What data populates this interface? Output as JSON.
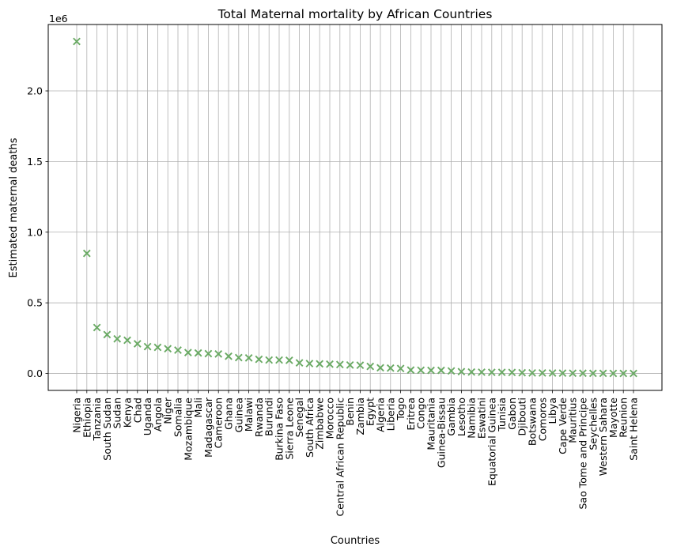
{
  "chart_data": {
    "type": "scatter",
    "title": "Total Maternal mortality by African Countries",
    "xlabel": "Countries",
    "ylabel": "Estimated maternal deaths",
    "offset_text": "1e6",
    "marker": "x",
    "marker_color": "#6aaa64",
    "grid": true,
    "ylim": [
      -120000,
      2470000
    ],
    "yticks": [
      0,
      500000,
      1000000,
      1500000,
      2000000
    ],
    "ytick_labels": [
      "0.0",
      "0.5",
      "1.0",
      "1.5",
      "2.0"
    ],
    "categories": [
      "Nigeria",
      "Ethiopia",
      "Tanzania",
      "South Sudan",
      "Sudan",
      "Kenya",
      "Chad",
      "Uganda",
      "Angola",
      "Niger",
      "Somalia",
      "Mozambique",
      "Mali",
      "Madagascar",
      "Cameroon",
      "Ghana",
      "Guinea",
      "Malawi",
      "Rwanda",
      "Burundi",
      "Burkina Faso",
      "Sierra Leone",
      "Senegal",
      "South Africa",
      "Zimbabwe",
      "Morocco",
      "Central African Republic",
      "Benin",
      "Zambia",
      "Egypt",
      "Algeria",
      "Liberia",
      "Togo",
      "Eritrea",
      "Congo",
      "Mauritania",
      "Guinea-Bissau",
      "Gambia",
      "Lesotho",
      "Namibia",
      "Eswatini",
      "Equatorial Guinea",
      "Tunisia",
      "Gabon",
      "Djibouti",
      "Botswana",
      "Comoros",
      "Libya",
      "Cape Verde",
      "Mauritius",
      "Sao Tome and Principe",
      "Seychelles",
      "Western Sahara",
      "Mayotte",
      "Reunion",
      "Saint Helena"
    ],
    "values": [
      2350000,
      850000,
      325000,
      275000,
      245000,
      235000,
      210000,
      190000,
      185000,
      175000,
      165000,
      148000,
      145000,
      140000,
      138000,
      122000,
      112000,
      110000,
      100000,
      95000,
      95000,
      93000,
      75000,
      70000,
      68000,
      66000,
      63000,
      60000,
      58000,
      50000,
      40000,
      38000,
      35000,
      24000,
      23000,
      22000,
      22000,
      18000,
      13000,
      10000,
      9000,
      8000,
      8000,
      7000,
      5000,
      4000,
      3500,
      3000,
      2500,
      2000,
      1500,
      1000,
      800,
      600,
      400,
      100
    ]
  }
}
